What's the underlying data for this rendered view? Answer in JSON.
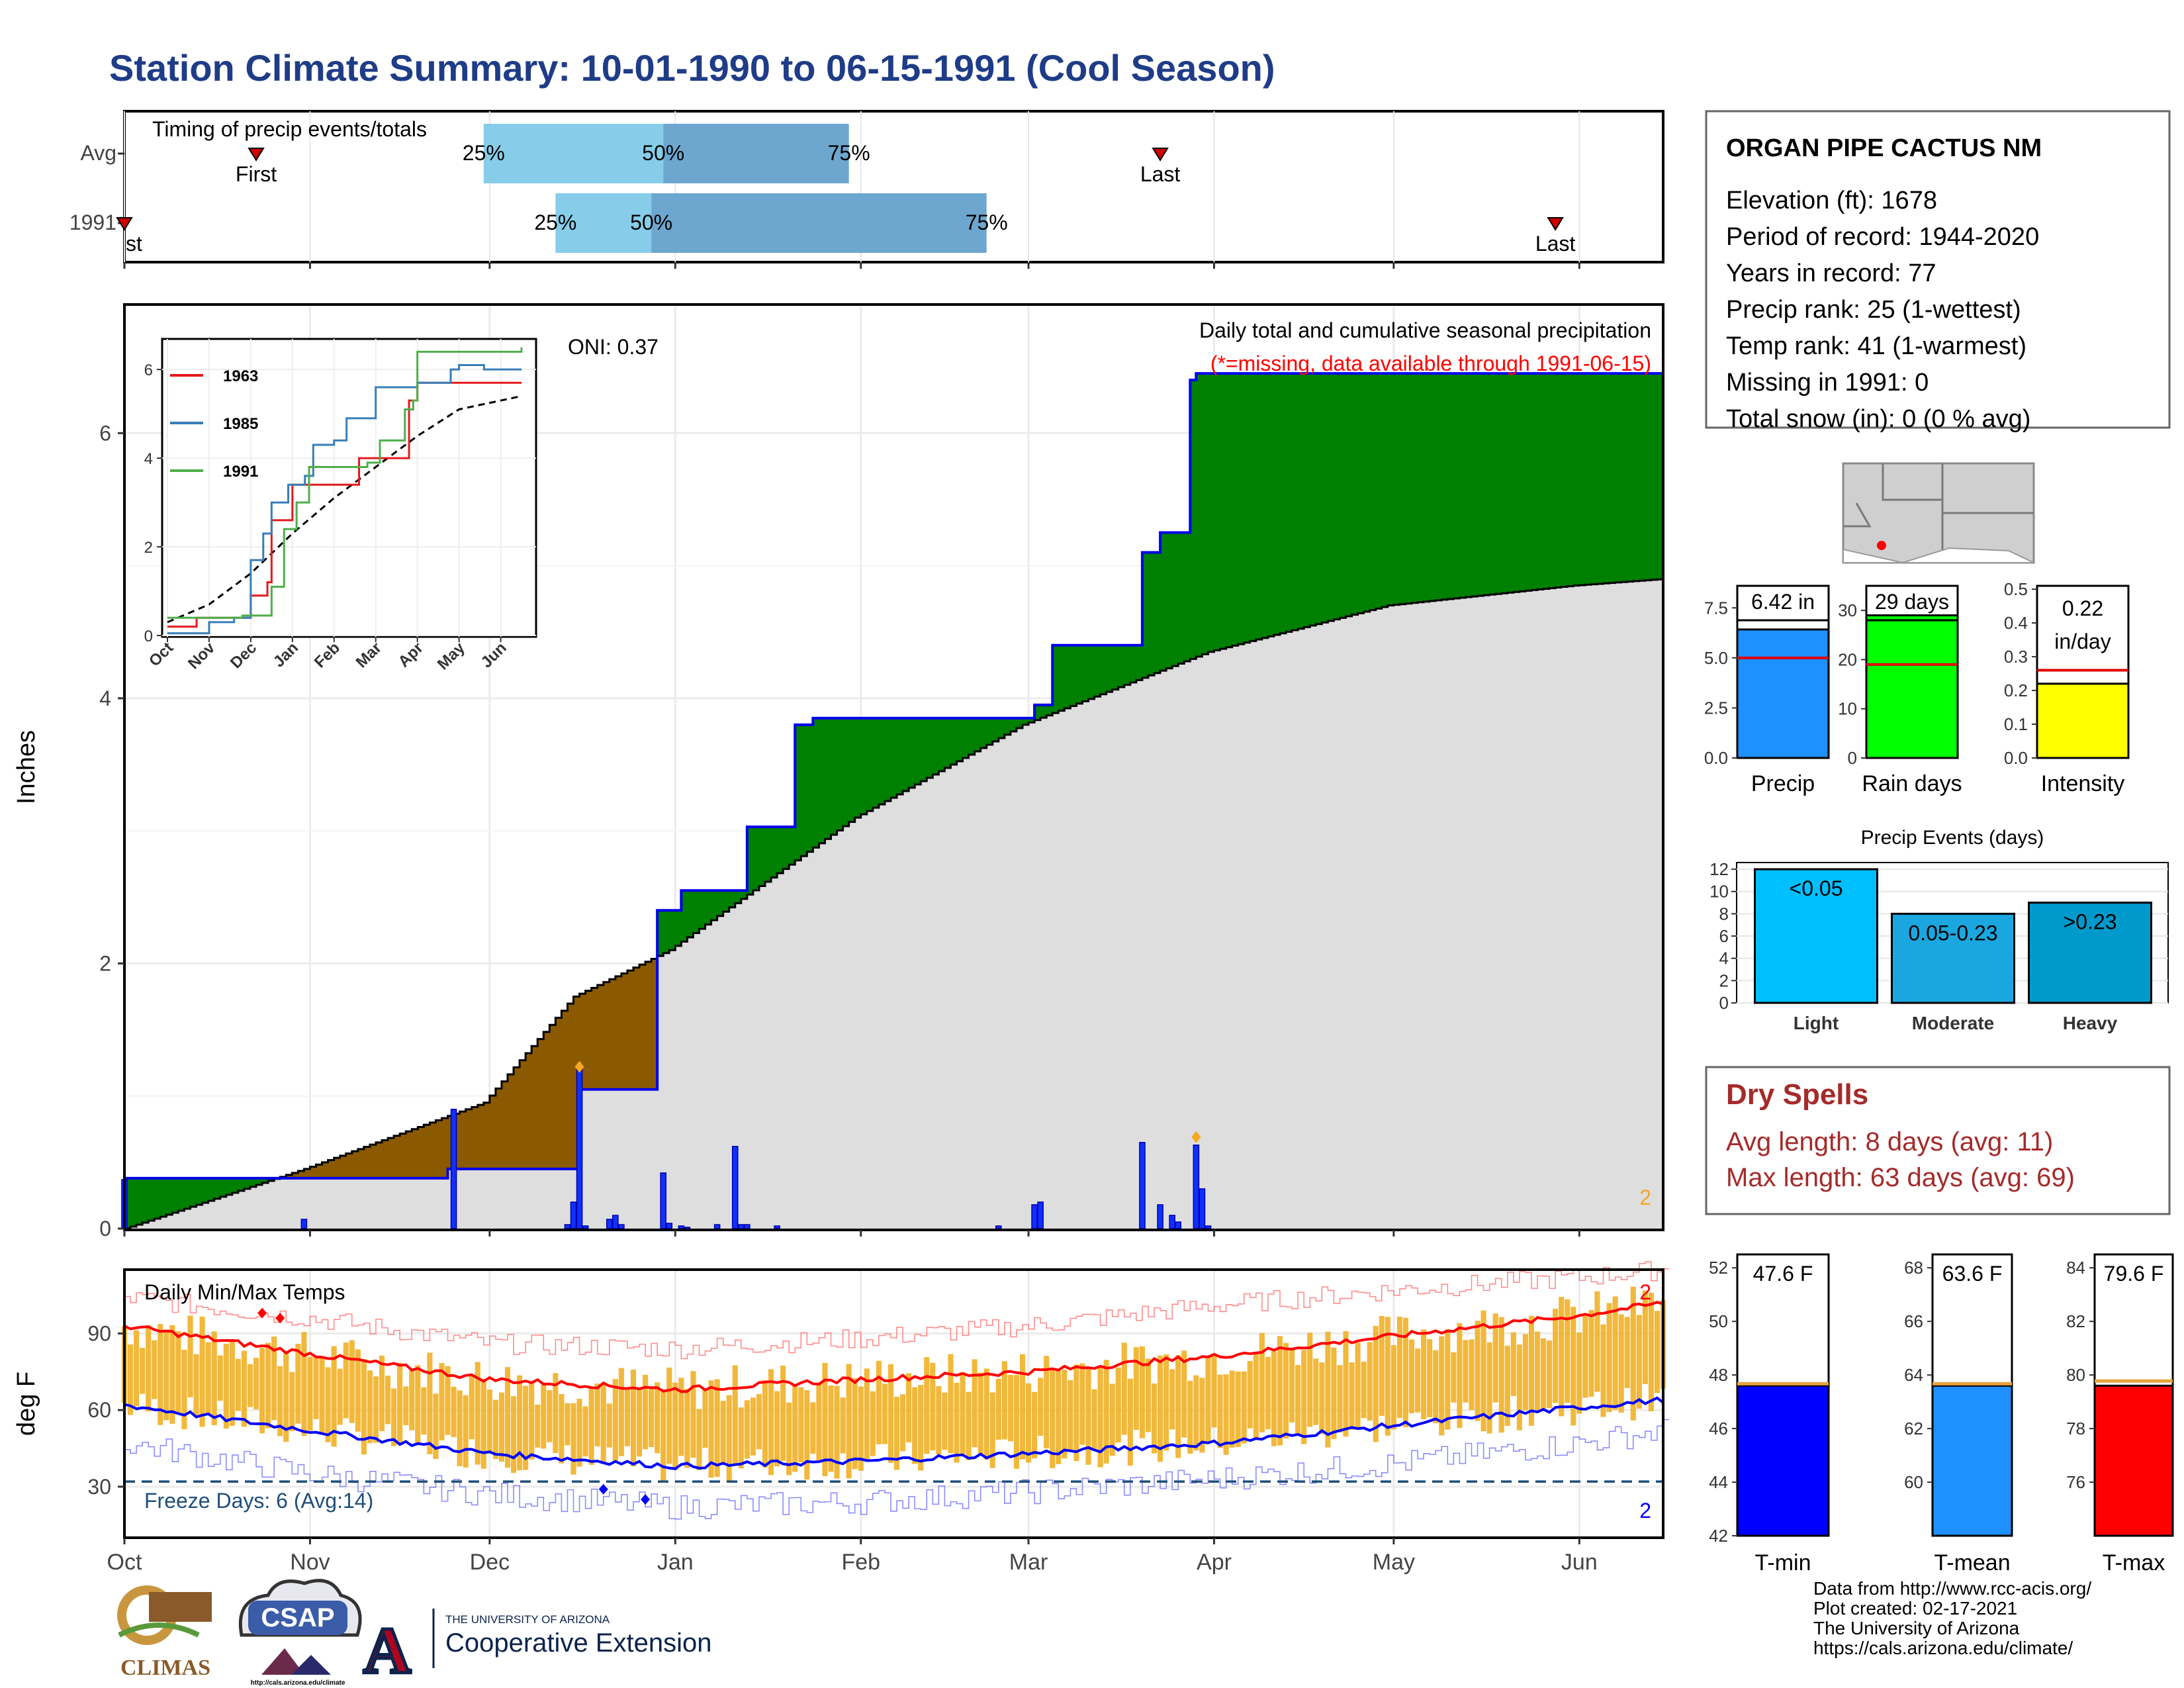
{
  "title": "Station Climate Summary: 10-01-1990 to 06-15-1991 (Cool Season)",
  "colors": {
    "title": "#1f3c88",
    "green_fill": "#008000",
    "brown_fill": "#8b5a00",
    "gray_fill": "#dedede",
    "precip_bar": "#1030ff",
    "temp_bar": "#f0b22a",
    "red": "#ff0000",
    "blue": "#0000ff",
    "dry_spell_text": "#a52a2a",
    "timing_light": "#87cdea",
    "timing_dark": "#6da7cf",
    "freeze_line": "#1f4e79"
  },
  "timing_panel": {
    "heading": "Timing of precip events/totals",
    "rows": [
      {
        "label": "Avg",
        "first_label": "First",
        "last_label": "Last",
        "first": "Oct 23",
        "p25": "Nov 30",
        "p50": "Dec 30",
        "p75": "Jan 30",
        "last": "Mar 23",
        "pct_labels": [
          "25%",
          "50%",
          "75%"
        ]
      },
      {
        "label": "1991",
        "first_label": "First",
        "last_label": "Last",
        "first": "Oct 1",
        "p25": "Dec 12",
        "p50": "Dec 28",
        "p75": "Feb 22",
        "last": "May 28",
        "pct_labels": [
          "25%",
          "50%",
          "75%"
        ]
      }
    ]
  },
  "precip_panel": {
    "title": "Daily total and cumulative seasonal precipitation",
    "subtitle": "(*=missing, data available through 1991-06-15)",
    "oni": "ONI: 0.37",
    "ylabel": "Inches",
    "corner_note": "2",
    "y_ticks": [
      "0",
      "2",
      "4",
      "6"
    ]
  },
  "inset": {
    "y_ticks": [
      "0",
      "2",
      "4",
      "6"
    ],
    "x_ticks": [
      "Oct",
      "Nov",
      "Dec",
      "Jan",
      "Feb",
      "Mar",
      "Apr",
      "May",
      "Jun"
    ],
    "legend": [
      {
        "name": "1963",
        "color": "#e41a1c"
      },
      {
        "name": "1985",
        "color": "#377eb8"
      },
      {
        "name": "1991",
        "color": "#4daf4a"
      }
    ]
  },
  "temp_panel": {
    "title": "Daily Min/Max Temps",
    "ylabel": "deg F",
    "freeze_label": "Freeze Days: 6 (Avg:14)",
    "y_ticks": [
      "30",
      "60",
      "90"
    ],
    "corner_top": "2",
    "corner_bottom": "2"
  },
  "x_months": [
    "Oct",
    "Nov",
    "Dec",
    "Jan",
    "Feb",
    "Mar",
    "Apr",
    "May",
    "Jun"
  ],
  "station": {
    "name": "ORGAN PIPE CACTUS NM",
    "lines": [
      "Elevation (ft): 1678",
      "Period of record: 1944-2020",
      "Years in record: 77",
      "Precip rank: 25 (1-wettest)",
      "Temp rank: 41 (1-warmest)",
      "Missing in 1991: 0",
      "Total snow (in): 0 (0 % avg)"
    ]
  },
  "mini_bars": [
    {
      "label": "Precip",
      "value": 6.42,
      "display": "6.42 in",
      "avg": 5.0,
      "ymax": 8.6,
      "ticks": [
        "0.0",
        "2.5",
        "5.0",
        "7.5"
      ],
      "tick_values": [
        0,
        2.5,
        5.0,
        7.5
      ],
      "color": "#1e90ff"
    },
    {
      "label": "Rain days",
      "value": 29,
      "display": "29 days",
      "avg": 19,
      "ymax": 35,
      "ticks": [
        "0",
        "10",
        "20",
        "30"
      ],
      "tick_values": [
        0,
        10,
        20,
        30
      ],
      "color": "#00ff00"
    },
    {
      "label": "Intensity",
      "value": 0.22,
      "display": "0.22 in/day",
      "display_top": "0.22",
      "display_bottom": "in/day",
      "avg": 0.26,
      "ymax": 0.51,
      "ticks": [
        "0.0",
        "0.1",
        "0.2",
        "0.3",
        "0.4",
        "0.5"
      ],
      "tick_values": [
        0,
        0.1,
        0.2,
        0.3,
        0.4,
        0.5
      ],
      "color": "#ffff00"
    }
  ],
  "events": {
    "title": "Precip Events (days)",
    "categories": [
      "Light",
      "Moderate",
      "Heavy"
    ],
    "bar_labels": [
      "<0.05",
      "0.05-0.23",
      ">0.23"
    ],
    "values": [
      12,
      8,
      9
    ],
    "colors": [
      "#00bfff",
      "#1aa7e0",
      "#0099cc"
    ],
    "ticks": [
      "0",
      "2",
      "4",
      "6",
      "8",
      "10",
      "12"
    ]
  },
  "dry_spells": {
    "title": "Dry Spells",
    "avg_line": "Avg length: 8 days (avg: 11)",
    "max_line": "Max length: 63 days (avg: 69)"
  },
  "temp_bars": [
    {
      "label": "T-min",
      "value": 47.6,
      "display": "47.6 F",
      "avg": 47.6,
      "ymin": 42,
      "ymax": 52.5,
      "ticks": [
        "42",
        "44",
        "46",
        "48",
        "50",
        "52"
      ],
      "tick_values": [
        42,
        44,
        46,
        48,
        50,
        52
      ],
      "color": "#0000ff"
    },
    {
      "label": "T-mean",
      "value": 63.6,
      "display": "63.6 F",
      "avg": 63.6,
      "ymin": 58,
      "ymax": 68.5,
      "ticks": [
        "60",
        "62",
        "64",
        "66",
        "68"
      ],
      "tick_values": [
        60,
        62,
        64,
        66,
        68
      ],
      "color": "#1e90ff"
    },
    {
      "label": "T-max",
      "value": 79.6,
      "display": "79.6 F",
      "avg": 79.7,
      "ymin": 74,
      "ymax": 84.5,
      "ticks": [
        "76",
        "78",
        "80",
        "82",
        "84"
      ],
      "tick_values": [
        76,
        78,
        80,
        82,
        84
      ],
      "color": "#ff0000"
    }
  ],
  "logos": {
    "climas": "CLIMAS",
    "csap": "CSAP",
    "csap_url": "http://cals.arizona.edu/climate",
    "ua_small": "THE UNIVERSITY OF ARIZONA",
    "ua_big": "Cooperative Extension",
    "ua_letter": "A"
  },
  "footer": [
    "Data from http://www.rcc-acis.org/",
    "Plot created: 02-17-2021",
    "The University of Arizona",
    "https://cals.arizona.edu/climate/"
  ],
  "chart_data": {
    "type": "area",
    "title": "Daily total and cumulative seasonal precipitation",
    "ylabel": "Inches",
    "ylim": [
      0,
      7
    ],
    "cumulative_1991": [
      [
        "1990-10-01",
        0.38
      ],
      [
        "1990-11-24",
        0.45
      ],
      [
        "1990-12-15",
        0.45
      ],
      [
        "1990-12-16",
        1.05
      ],
      [
        "1990-12-29",
        2.4
      ],
      [
        "1991-01-02",
        2.55
      ],
      [
        "1991-01-13",
        3.03
      ],
      [
        "1991-01-21",
        3.8
      ],
      [
        "1991-01-24",
        3.85
      ],
      [
        "1991-02-24",
        3.85
      ],
      [
        "1991-03-02",
        3.95
      ],
      [
        "1991-03-05",
        4.4
      ],
      [
        "1991-03-20",
        5.1
      ],
      [
        "1991-03-23",
        5.25
      ],
      [
        "1991-03-28",
        6.4
      ],
      [
        "1991-03-29",
        6.45
      ],
      [
        "1991-06-15",
        6.47
      ]
    ],
    "average_cumulative": [
      [
        "1990-10-01",
        0.0
      ],
      [
        "1990-10-31",
        0.45
      ],
      [
        "1990-11-30",
        0.95
      ],
      [
        "1990-12-15",
        1.75
      ],
      [
        "1990-12-31",
        2.1
      ],
      [
        "1991-01-31",
        3.1
      ],
      [
        "1991-02-28",
        3.8
      ],
      [
        "1991-03-31",
        4.35
      ],
      [
        "1991-04-30",
        4.7
      ],
      [
        "1991-05-31",
        4.85
      ],
      [
        "1991-06-15",
        4.9
      ]
    ],
    "daily_precip": [
      [
        "1990-10-01",
        0.37
      ],
      [
        "1990-10-31",
        0.07
      ],
      [
        "1990-11-25",
        0.9
      ],
      [
        "1990-12-14",
        0.03
      ],
      [
        "1990-12-15",
        0.2
      ],
      [
        "1990-12-16",
        1.2
      ],
      [
        "1990-12-17",
        0.02
      ],
      [
        "1990-12-21",
        0.07
      ],
      [
        "1990-12-22",
        0.1
      ],
      [
        "1990-12-23",
        0.03
      ],
      [
        "1990-12-30",
        0.42
      ],
      [
        "1990-12-31",
        0.04
      ],
      [
        "1991-01-02",
        0.02
      ],
      [
        "1991-01-03",
        0.01
      ],
      [
        "1991-01-08",
        0.03
      ],
      [
        "1991-01-11",
        0.62
      ],
      [
        "1991-01-12",
        0.03
      ],
      [
        "1991-01-13",
        0.03
      ],
      [
        "1991-01-18",
        0.02
      ],
      [
        "1991-02-24",
        0.02
      ],
      [
        "1991-03-02",
        0.18
      ],
      [
        "1991-03-03",
        0.2
      ],
      [
        "1991-03-20",
        0.65
      ],
      [
        "1991-03-23",
        0.18
      ],
      [
        "1991-03-25",
        0.1
      ],
      [
        "1991-03-26",
        0.05
      ],
      [
        "1991-03-29",
        0.63
      ],
      [
        "1991-03-30",
        0.3
      ],
      [
        "1991-03-31",
        0.02
      ]
    ],
    "temperature": {
      "ylim": [
        10,
        115
      ],
      "freeze_line": 32,
      "avg_max": [
        [
          "1990-10-01",
          93
        ],
        [
          "1990-11-01",
          82
        ],
        [
          "1990-12-01",
          72
        ],
        [
          "1991-01-01",
          68
        ],
        [
          "1991-02-01",
          72
        ],
        [
          "1991-03-01",
          75
        ],
        [
          "1991-04-01",
          81
        ],
        [
          "1991-05-01",
          89
        ],
        [
          "1991-06-01",
          97
        ],
        [
          "1991-06-15",
          102
        ]
      ],
      "avg_min": [
        [
          "1990-10-01",
          62
        ],
        [
          "1990-11-01",
          52
        ],
        [
          "1990-12-01",
          43
        ],
        [
          "1991-01-01",
          38
        ],
        [
          "1991-02-01",
          40
        ],
        [
          "1991-03-01",
          43
        ],
        [
          "1991-04-01",
          47
        ],
        [
          "1991-05-01",
          54
        ],
        [
          "1991-06-01",
          61
        ],
        [
          "1991-06-15",
          64
        ]
      ],
      "record_max": [
        [
          "1990-10-01",
          104
        ],
        [
          "1990-11-01",
          96
        ],
        [
          "1990-12-01",
          86
        ],
        [
          "1991-01-01",
          84
        ],
        [
          "1991-02-01",
          88
        ],
        [
          "1991-03-01",
          93
        ],
        [
          "1991-04-01",
          101
        ],
        [
          "1991-05-01",
          107
        ],
        [
          "1991-06-01",
          112
        ],
        [
          "1991-06-15",
          115
        ]
      ],
      "record_min": [
        [
          "1990-10-01",
          47
        ],
        [
          "1990-11-01",
          35
        ],
        [
          "1990-12-01",
          27
        ],
        [
          "1991-01-01",
          22
        ],
        [
          "1991-02-01",
          24
        ],
        [
          "1991-03-01",
          28
        ],
        [
          "1991-04-01",
          33
        ],
        [
          "1991-05-01",
          39
        ],
        [
          "1991-06-01",
          47
        ],
        [
          "1991-06-15",
          52
        ]
      ]
    }
  }
}
